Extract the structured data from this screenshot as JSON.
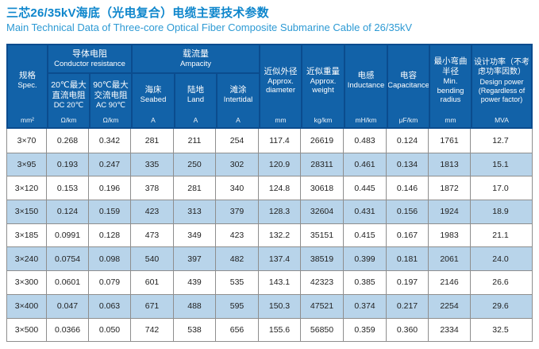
{
  "title": {
    "zh": "三芯26/35kV海底（光电复合）电缆主要技术参数",
    "en": "Main Technical Data of Three-core Optical Fiber Composite Submarine Cable of 26/35kV"
  },
  "colors": {
    "title_zh": "#0e86cc",
    "title_en": "#2d9ad4",
    "header_bg": "#1262a8",
    "header_border": "#0b4c8e",
    "row_alt_bg": "#b8d4ea",
    "row_bg": "#ffffff",
    "grid_border": "#8e8e8e"
  },
  "table": {
    "header": {
      "spec": {
        "zh": "规格",
        "en": "Spec.",
        "unit": "mm²"
      },
      "conductor_resistance": {
        "zh": "导体电阻",
        "en": "Conductor resistance"
      },
      "dc": {
        "zh": "20℃最大直流电阻",
        "en": "DC 20℃",
        "unit": "Ω/km"
      },
      "ac": {
        "zh": "90℃最大交流电阻",
        "en": "AC 90℃",
        "unit": "Ω/km"
      },
      "ampacity": {
        "zh": "载流量",
        "en": "Ampacity"
      },
      "seabed": {
        "zh": "海床",
        "en": "Seabed",
        "unit": "A"
      },
      "land": {
        "zh": "陆地",
        "en": "Land",
        "unit": "A"
      },
      "intertidal": {
        "zh": "滩涂",
        "en": "Intertidal",
        "unit": "A"
      },
      "diameter": {
        "zh": "近似外径",
        "en": "Approx. diameter",
        "unit": "mm"
      },
      "weight": {
        "zh": "近似重量",
        "en": "Approx. weight",
        "unit": "kg/km"
      },
      "inductance": {
        "zh": "电感",
        "en": "Inductance",
        "unit": "mH/km"
      },
      "capacitance": {
        "zh": "电容",
        "en": "Capacitance",
        "unit": "μF/km"
      },
      "bending_radius": {
        "zh": "最小弯曲半径",
        "en": "Min. bending radius",
        "unit": "mm"
      },
      "design_power": {
        "zh": "设计功率（不考虑功率因数）",
        "en": "Design power (Regardless of power factor)",
        "unit": "MVA"
      }
    },
    "rows": [
      [
        "3×70",
        "0.268",
        "0.342",
        "281",
        "211",
        "254",
        "117.4",
        "26619",
        "0.483",
        "0.124",
        "1761",
        "12.7"
      ],
      [
        "3×95",
        "0.193",
        "0.247",
        "335",
        "250",
        "302",
        "120.9",
        "28311",
        "0.461",
        "0.134",
        "1813",
        "15.1"
      ],
      [
        "3×120",
        "0.153",
        "0.196",
        "378",
        "281",
        "340",
        "124.8",
        "30618",
        "0.445",
        "0.146",
        "1872",
        "17.0"
      ],
      [
        "3×150",
        "0.124",
        "0.159",
        "423",
        "313",
        "379",
        "128.3",
        "32604",
        "0.431",
        "0.156",
        "1924",
        "18.9"
      ],
      [
        "3×185",
        "0.0991",
        "0.128",
        "473",
        "349",
        "423",
        "132.2",
        "35151",
        "0.415",
        "0.167",
        "1983",
        "21.1"
      ],
      [
        "3×240",
        "0.0754",
        "0.098",
        "540",
        "397",
        "482",
        "137.4",
        "38519",
        "0.399",
        "0.181",
        "2061",
        "24.0"
      ],
      [
        "3×300",
        "0.0601",
        "0.079",
        "601",
        "439",
        "535",
        "143.1",
        "42323",
        "0.385",
        "0.197",
        "2146",
        "26.6"
      ],
      [
        "3×400",
        "0.047",
        "0.063",
        "671",
        "488",
        "595",
        "150.3",
        "47521",
        "0.374",
        "0.217",
        "2254",
        "29.6"
      ],
      [
        "3×500",
        "0.0366",
        "0.050",
        "742",
        "538",
        "656",
        "155.6",
        "56850",
        "0.359",
        "0.360",
        "2334",
        "32.5"
      ]
    ]
  }
}
